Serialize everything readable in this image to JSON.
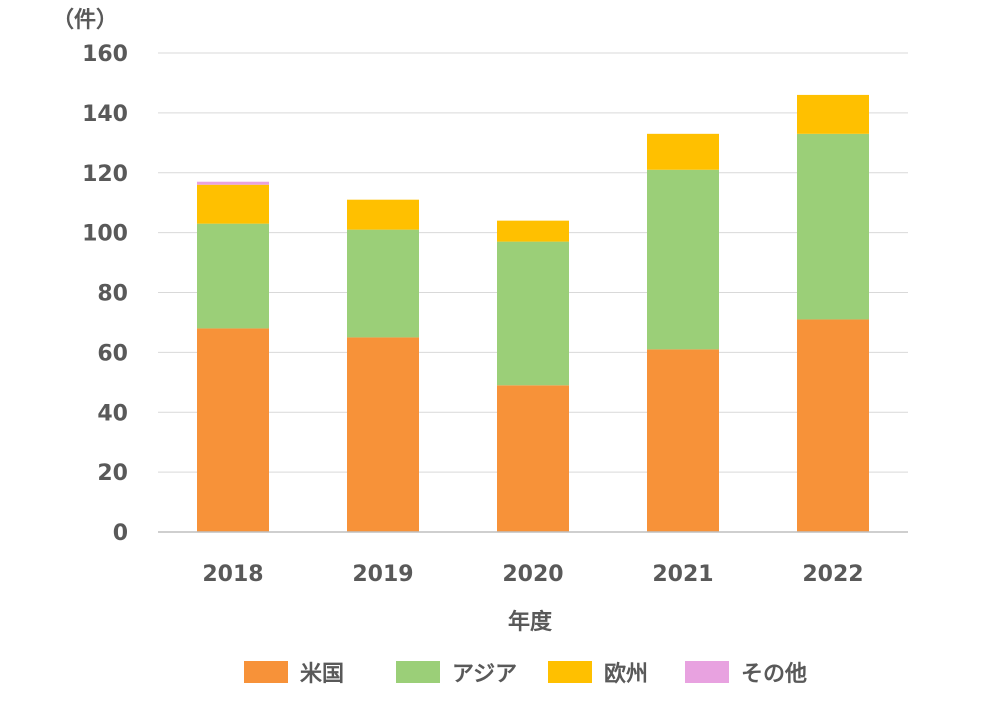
{
  "chart_data": {
    "type": "bar",
    "stacked": true,
    "categories": [
      "2018",
      "2019",
      "2020",
      "2021",
      "2022"
    ],
    "series": [
      {
        "name": "米国",
        "color": "#F79239",
        "values": [
          68,
          65,
          49,
          61,
          71
        ]
      },
      {
        "name": "アジア",
        "color": "#9BCF78",
        "values": [
          35,
          36,
          48,
          60,
          62
        ]
      },
      {
        "name": "欧州",
        "color": "#FFC000",
        "values": [
          13,
          10,
          7,
          12,
          13
        ]
      },
      {
        "name": "その他",
        "color": "#E8A2E0",
        "values": [
          1,
          0,
          0,
          0,
          0
        ]
      }
    ],
    "ylabel": "（件）",
    "xlabel": "年度",
    "ylim": [
      0,
      160
    ],
    "yticks": [
      "0",
      "20",
      "40",
      "60",
      "80",
      "100",
      "120",
      "140",
      "160"
    ],
    "grid": true,
    "legend_position": "bottom"
  }
}
